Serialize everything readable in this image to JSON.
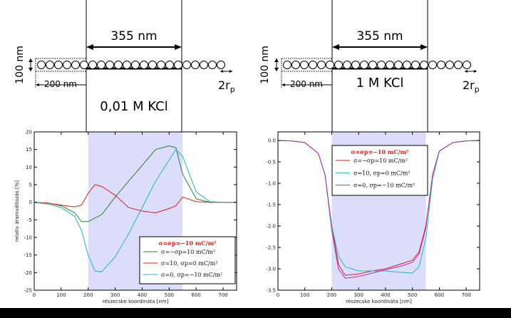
{
  "figure": {
    "left": {
      "channel_width_label": "355 nm",
      "height_label": "100 nm",
      "offset_label": "200 nm",
      "pore_label": "2r",
      "pore_sub": "p",
      "concentration_label": "0,01 M KCl"
    },
    "right": {
      "channel_width_label": "355 nm",
      "height_label": "100 nm",
      "offset_label": "200 nm",
      "pore_label": "2r",
      "pore_sub": "p",
      "concentration_label": "1 M KCl"
    }
  },
  "chart_data": [
    {
      "type": "line",
      "xlabel": "részecske koordináta [nm]",
      "ylabel": "relatív áramváltozás [%]",
      "xlim": [
        0,
        750
      ],
      "ylim": [
        -25,
        20
      ],
      "xticks": [
        0,
        100,
        200,
        300,
        400,
        500,
        600,
        700
      ],
      "yticks": [
        -25,
        -20,
        -15,
        -10,
        -5,
        0,
        5,
        10,
        15,
        20
      ],
      "shaded_region": [
        200,
        550
      ],
      "legend": {
        "position": "lower-right",
        "title": "σ=σp=−10 mC/m²",
        "title_color": "#e02020"
      },
      "series": [
        {
          "name": "σ=−σp=10 mC/m²",
          "color": "#2e7d2e",
          "x": [
            0,
            50,
            100,
            150,
            175,
            200,
            250,
            300,
            350,
            400,
            450,
            500,
            525,
            550,
            600,
            650,
            700,
            750
          ],
          "y": [
            0,
            -0.2,
            -1,
            -3,
            -5.5,
            -5.5,
            -3.5,
            1.5,
            6,
            10.5,
            15,
            16,
            15.5,
            8,
            1,
            0,
            0,
            0
          ]
        },
        {
          "name": "σ=10, σp=0 mC/m²",
          "color": "#e02020",
          "x": [
            0,
            50,
            100,
            150,
            175,
            200,
            225,
            250,
            300,
            350,
            400,
            450,
            500,
            525,
            550,
            600,
            650,
            700,
            750
          ],
          "y": [
            0,
            -0.2,
            -0.8,
            -1.3,
            -0.8,
            2.5,
            5,
            4.5,
            2,
            -1.5,
            -2.5,
            -3,
            -1.8,
            -1,
            1.5,
            0.2,
            0,
            0,
            0
          ]
        },
        {
          "name": "σ=0, σp=−10 mC/m²",
          "color": "#20b8b8",
          "x": [
            0,
            50,
            100,
            150,
            175,
            200,
            225,
            250,
            300,
            350,
            400,
            450,
            500,
            525,
            550,
            600,
            650,
            700,
            750
          ],
          "y": [
            0,
            -0.5,
            -1.5,
            -4,
            -8,
            -15,
            -19.5,
            -19.8,
            -15.5,
            -9,
            -1.5,
            6,
            12,
            15,
            13,
            3,
            0.2,
            0,
            0
          ]
        }
      ]
    },
    {
      "type": "line",
      "xlabel": "részecske koordináta [nm]",
      "ylabel": "",
      "xlim": [
        0,
        750
      ],
      "ylim": [
        -3.5,
        0.2
      ],
      "xticks": [
        0,
        100,
        200,
        300,
        400,
        500,
        600,
        700
      ],
      "yticks": [
        -3.5,
        -3.0,
        -2.5,
        -2.0,
        -1.5,
        -1.0,
        -0.5,
        0.0
      ],
      "shaded_region": [
        200,
        550
      ],
      "legend": {
        "position": "upper-center",
        "title": "σ=σp=−10 mC/m²",
        "title_color": "#e02020"
      },
      "series": [
        {
          "name": "σ=−σp=10 mC/m²",
          "color": "#e02020",
          "x": [
            0,
            50,
            100,
            150,
            175,
            200,
            225,
            250,
            300,
            350,
            400,
            450,
            500,
            525,
            550,
            575,
            600,
            650,
            700,
            750
          ],
          "y": [
            0,
            -0.01,
            -0.05,
            -0.3,
            -0.8,
            -2.0,
            -2.9,
            -3.15,
            -3.12,
            -3.05,
            -3.0,
            -2.9,
            -2.8,
            -2.6,
            -2.0,
            -0.8,
            -0.25,
            -0.05,
            -0.01,
            0
          ]
        },
        {
          "name": "σ=10, σp=0 mC/m²",
          "color": "#20b8b8",
          "x": [
            0,
            50,
            100,
            150,
            175,
            200,
            225,
            250,
            300,
            350,
            400,
            450,
            500,
            525,
            550,
            575,
            600,
            650,
            700,
            750
          ],
          "y": [
            0,
            -0.01,
            -0.05,
            -0.3,
            -0.8,
            -2.0,
            -2.7,
            -2.95,
            -3.05,
            -3.05,
            -3.05,
            -3.08,
            -3.1,
            -2.95,
            -2.3,
            -0.9,
            -0.25,
            -0.05,
            -0.01,
            0
          ]
        },
        {
          "name": "σ=0, σp=−10 mC/m²",
          "color": "#b030b0",
          "x": [
            0,
            50,
            100,
            150,
            175,
            200,
            225,
            250,
            300,
            350,
            400,
            450,
            500,
            525,
            550,
            575,
            600,
            650,
            700,
            750
          ],
          "y": [
            0,
            -0.01,
            -0.05,
            -0.3,
            -0.8,
            -2.1,
            -3.0,
            -3.22,
            -3.18,
            -3.1,
            -3.02,
            -2.95,
            -2.85,
            -2.65,
            -2.05,
            -0.8,
            -0.25,
            -0.05,
            -0.01,
            0
          ]
        }
      ]
    }
  ]
}
